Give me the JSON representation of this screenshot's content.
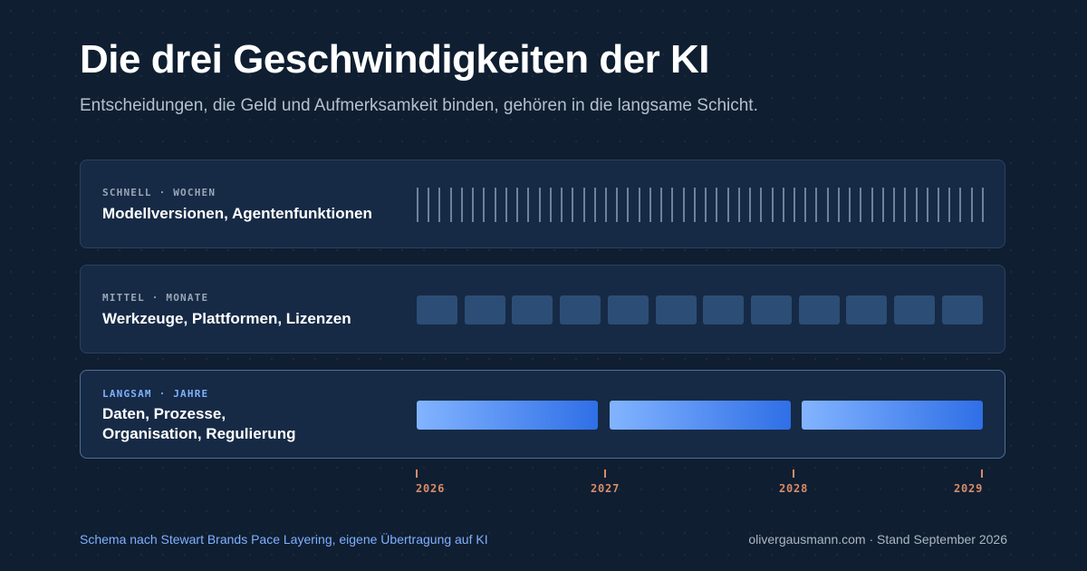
{
  "title": "Die drei Geschwindigkeiten der KI",
  "subtitle": "Entscheidungen, die Geld und Aufmerksamkeit binden, gehören in die langsame Schicht.",
  "layers": {
    "fast": {
      "tag": "SCHNELL · WOCHEN",
      "description": "Modellversionen, Agentenfunktionen",
      "tick_count": 52
    },
    "medium": {
      "tag": "MITTEL · MONATE",
      "description": "Werkzeuge, Plattformen, Lizenzen",
      "block_count": 12
    },
    "slow": {
      "tag": "LANGSAM · JAHRE",
      "description": "Daten, Prozesse,\nOrganisation, Regulierung",
      "bar_count": 3
    }
  },
  "timeline": {
    "years": [
      "2026",
      "2027",
      "2028",
      "2029"
    ]
  },
  "footer": {
    "left": "Schema nach Stewart Brands Pace Layering, eigene Übertragung auf KI",
    "right": "olivergausmann.com · Stand September 2026"
  },
  "colors": {
    "background": "#0f1e30",
    "card": "#162a45",
    "accent_blue": "#7fb0ff",
    "bar_gradient_start": "#82b4ff",
    "bar_gradient_end": "#2f6fe6",
    "axis_orange": "#d98b6a"
  }
}
